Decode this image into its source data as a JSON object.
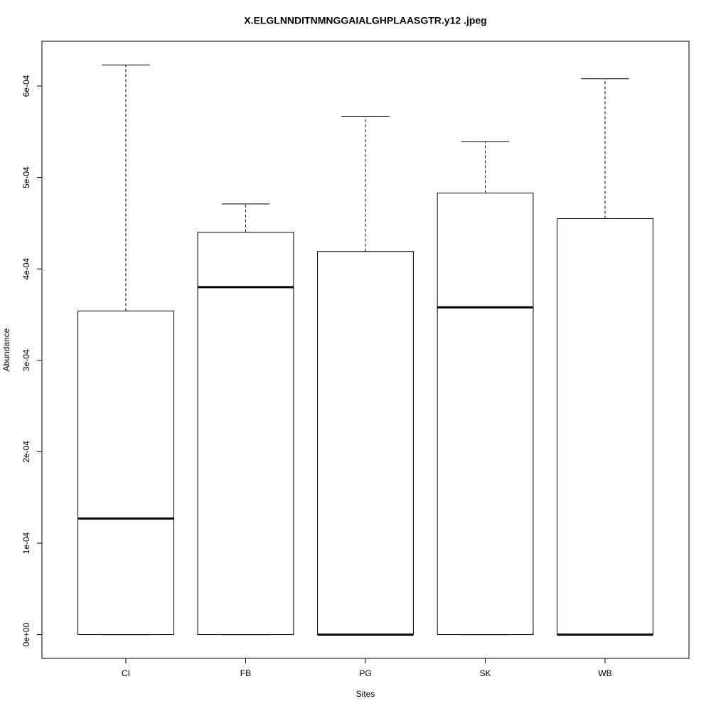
{
  "chart_data": {
    "type": "box",
    "title": "X.ELGLNNDITNMNGGAIALGHPLAASGTR.y12 .jpeg",
    "x_label": "Sites",
    "y_label": "Abundance",
    "categories": [
      "CI",
      "FB",
      "PG",
      "SK",
      "WB"
    ],
    "min": [
      0,
      0,
      0,
      0,
      0
    ],
    "q1": [
      0,
      0,
      0,
      0,
      0
    ],
    "median": [
      0.000127,
      0.00038,
      0,
      0.000358,
      0
    ],
    "q3": [
      0.000354,
      0.00044,
      0.000419,
      0.000483,
      0.000455
    ],
    "max": [
      0.000623,
      0.000471,
      0.000567,
      0.000539,
      0.000608
    ],
    "color": "#000000",
    "ylim": [
      -2.6e-05,
      0.000649
    ],
    "yticks": [
      {
        "value": 0,
        "label": "0e+00"
      },
      {
        "value": 0.0001,
        "label": "1e-04"
      },
      {
        "value": 0.0002,
        "label": "2e-04"
      },
      {
        "value": 0.0003,
        "label": "3e-04"
      },
      {
        "value": 0.0004,
        "label": "4e-04"
      },
      {
        "value": 0.0005,
        "label": "5e-04"
      },
      {
        "value": 0.0006,
        "label": "6e-04"
      }
    ]
  }
}
